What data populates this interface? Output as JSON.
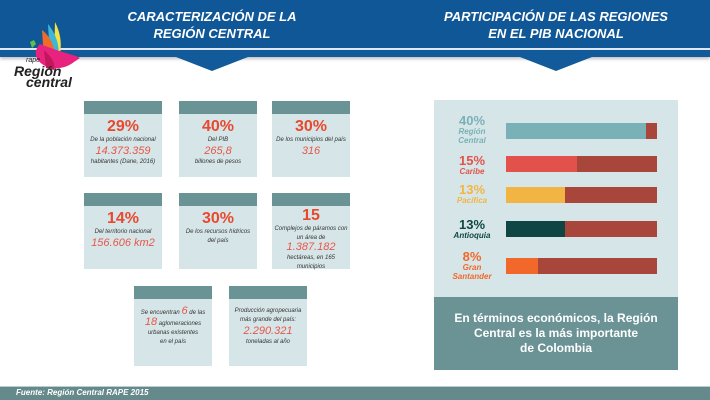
{
  "header": {
    "left_title_line1": "CARACTERIZACIÓN DE LA",
    "left_title_line2": "REGIÓN CENTRAL",
    "right_title_line1": "PARTICIPACIÓN DE LAS REGIONES",
    "right_title_line2": "EN EL PIB NACIONAL"
  },
  "logo": {
    "small": "rape",
    "line1": "Región",
    "line2": "central"
  },
  "cards": [
    {
      "big": "29%",
      "text1": "De la población nacional",
      "num": "14.373.359",
      "text2": "habitantes  (Dane, 2016)"
    },
    {
      "big": "40%",
      "text1": "Del PIB",
      "num": "265,8",
      "text2": "billones de pesos"
    },
    {
      "big": "30%",
      "text1": "De los municipios del país",
      "num": "316"
    },
    {
      "big": "14%",
      "text1": "Del territorio nacional",
      "num": "156.606 km2"
    },
    {
      "big": "30%",
      "text1": "De los recursos hídricos",
      "text2": "del país"
    },
    {
      "big": "15",
      "text1": "Complejos de páramos con",
      "text_pre": "un área de",
      "num": "1.387.182",
      "text2": "hectáreas, en 165 municipios"
    },
    {
      "pre": "Se encuentran",
      "num1": "6",
      "mid": "de las",
      "num2": "18",
      "text1": "aglomeraciones",
      "text2": "urbanas existentes",
      "text3": "en el país"
    },
    {
      "text1": "Producción agropecuaria",
      "text2": "más grande del país:",
      "num": "2.290.321",
      "text3": "toneladas al año"
    }
  ],
  "chart_data": {
    "type": "bar",
    "title": "PARTICIPACIÓN DE LAS REGIONES EN EL PIB NACIONAL",
    "categories": [
      "Región Central",
      "Caribe",
      "Pacífica",
      "Antioquia",
      "Gran Santander"
    ],
    "values": [
      40,
      15,
      13,
      13,
      8
    ],
    "value_labels": [
      "40%",
      "15%",
      "13%",
      "13%",
      "8%"
    ],
    "bar_fill_fraction": [
      0.93,
      0.47,
      0.39,
      0.39,
      0.21
    ],
    "colors": [
      "#7ab1b6",
      "#e3524a",
      "#f2b443",
      "#0f4644",
      "#f2682a"
    ],
    "label_colors": [
      "#7ab1b6",
      "#e3524a",
      "#f2b443",
      "#0f4644",
      "#f2682a"
    ],
    "remainder_color": "#a9463b",
    "xlabel": "",
    "ylabel": ""
  },
  "summary": {
    "line1": "En términos económicos, la Región",
    "line2": "Central es la más importante",
    "line3": "de Colombia"
  },
  "footer": {
    "source": "Fuente:  Región Central RAPE 2015"
  }
}
